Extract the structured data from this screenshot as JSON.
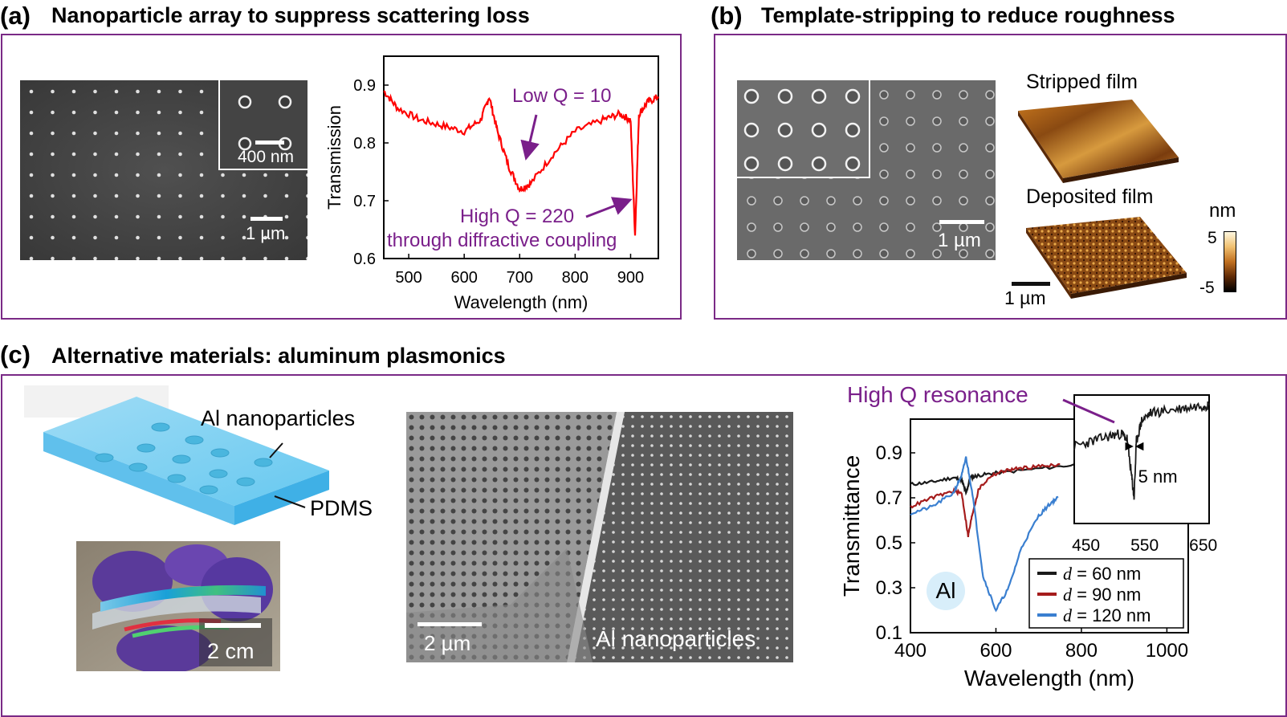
{
  "panel_a": {
    "label": "(a)",
    "title": "Nanoparticle array to suppress scattering loss",
    "sem_inset_scale": "400 nm",
    "sem_scale": "1 µm",
    "chart_title": "",
    "annotation_low": "Low Q = 10",
    "annotation_high_1": "High Q = 220",
    "annotation_high_2": "through diffractive coupling",
    "accent_color": "#7a1f8a",
    "line_color": "#ff0000"
  },
  "panel_b": {
    "label": "(b)",
    "title": "Template-stripping to reduce roughness",
    "sem_scale": "1 µm",
    "stripped_label": "Stripped film",
    "deposited_label": "Deposited film",
    "afm_scale": "1 µm",
    "colorbar_unit": "nm",
    "colorbar_max": "5",
    "colorbar_min": "-5"
  },
  "panel_c": {
    "label": "(c)",
    "title": "Alternative materials: aluminum plasmonics",
    "schematic_np_label": "Al nanoparticles",
    "schematic_pdms_label": "PDMS",
    "photo_scale": "2 cm",
    "sem_scale": "2 µm",
    "sem_label": "Al nanoparticles",
    "annotation_resonance": "High Q resonance",
    "material_badge": "Al",
    "inset_fwhm": "5 nm"
  },
  "chart_data": [
    {
      "type": "line",
      "title": "",
      "xlabel": "Wavelength (nm)",
      "ylabel": "Transmission",
      "xlim": [
        455,
        950
      ],
      "ylim": [
        0.6,
        0.95
      ],
      "xticks": [
        500,
        600,
        700,
        800,
        900
      ],
      "yticks": [
        0.6,
        0.7,
        0.8,
        0.9
      ],
      "series": [
        {
          "color": "#ff0000",
          "x": [
            455,
            480,
            520,
            560,
            600,
            630,
            645,
            660,
            680,
            700,
            720,
            760,
            800,
            850,
            880,
            900,
            908,
            915,
            930,
            950
          ],
          "y": [
            0.89,
            0.86,
            0.84,
            0.83,
            0.82,
            0.84,
            0.88,
            0.82,
            0.76,
            0.72,
            0.73,
            0.78,
            0.82,
            0.84,
            0.85,
            0.84,
            0.64,
            0.85,
            0.87,
            0.88
          ]
        }
      ]
    },
    {
      "type": "line",
      "title": "",
      "xlabel": "Wavelength (nm)",
      "ylabel": "Transmittance",
      "xlim": [
        400,
        1050
      ],
      "ylim": [
        0.1,
        1.05
      ],
      "xticks": [
        400,
        600,
        800,
        1000
      ],
      "yticks": [
        0.1,
        0.3,
        0.5,
        0.7,
        0.9
      ],
      "legend_position": "bottom-right",
      "series": [
        {
          "name": "d = 60 nm",
          "color": "#1a1a1a",
          "x": [
            400,
            450,
            500,
            520,
            530,
            540,
            560,
            600,
            700,
            800,
            900,
            1000,
            1050
          ],
          "y": [
            0.76,
            0.77,
            0.79,
            0.78,
            0.72,
            0.79,
            0.8,
            0.81,
            0.83,
            0.85,
            0.87,
            0.9,
            0.92
          ]
        },
        {
          "name": "d = 90 nm",
          "color": "#a51c1c",
          "x": [
            400,
            450,
            500,
            520,
            535,
            545,
            560,
            590,
            620,
            650,
            700,
            750
          ],
          "y": [
            0.66,
            0.7,
            0.73,
            0.72,
            0.53,
            0.63,
            0.74,
            0.8,
            0.82,
            0.83,
            0.84,
            0.85
          ]
        },
        {
          "name": "d = 120 nm",
          "color": "#3a7fd0",
          "x": [
            400,
            450,
            500,
            520,
            530,
            545,
            570,
            600,
            630,
            660,
            700,
            730,
            745
          ],
          "y": [
            0.63,
            0.66,
            0.72,
            0.8,
            0.88,
            0.72,
            0.35,
            0.2,
            0.3,
            0.48,
            0.62,
            0.68,
            0.7
          ]
        }
      ],
      "inset": {
        "xlim": [
          430,
          660
        ],
        "xticks": [
          450,
          550,
          650
        ],
        "series": [
          {
            "color": "#1a1a1a",
            "x": [
              430,
              460,
              490,
              510,
              520,
              528,
              532,
              536,
              545,
              560,
              590,
              620,
              650,
              660
            ],
            "y": [
              0.8,
              0.82,
              0.84,
              0.85,
              0.83,
              0.68,
              0.6,
              0.82,
              0.9,
              0.93,
              0.94,
              0.95,
              0.96,
              0.96
            ]
          }
        ]
      }
    }
  ]
}
